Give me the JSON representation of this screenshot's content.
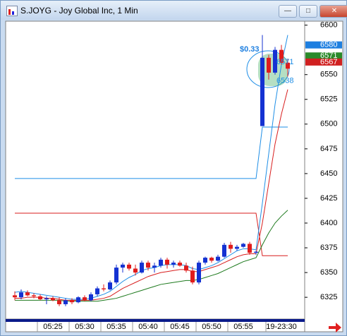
{
  "chart_data": {
    "type": "candlestick",
    "title": "S.JOYG - Joy Global Inc, 1 Min",
    "categories": [
      null,
      null,
      null,
      null,
      null,
      null,
      "05:25",
      null,
      null,
      null,
      null,
      "05:30",
      null,
      null,
      null,
      null,
      "05:35",
      null,
      null,
      null,
      null,
      "05:40",
      null,
      null,
      null,
      null,
      "05:45",
      null,
      null,
      null,
      null,
      "05:50",
      null,
      null,
      null,
      null,
      "05:55",
      null,
      null,
      null,
      null,
      null,
      "19-23:30",
      null
    ],
    "open": [
      6327,
      6325,
      6330,
      6327,
      6326,
      6323,
      6324,
      6322,
      6318,
      6322,
      6320,
      6325,
      6322,
      6328,
      6334,
      6333,
      6340,
      6355,
      6358,
      6354,
      6350,
      6360,
      6355,
      6357,
      6363,
      6358,
      6360,
      6357,
      6352,
      6340,
      6360,
      6365,
      6362,
      6366,
      6378,
      6374,
      6376,
      6379,
      6370,
      6498,
      6567,
      6552,
      6575,
      6562
    ],
    "high": [
      6331,
      6333,
      6332,
      6329,
      6328,
      6326,
      6326,
      6325,
      6324,
      6324,
      6326,
      6327,
      6330,
      6336,
      6338,
      6342,
      6358,
      6360,
      6360,
      6358,
      6362,
      6362,
      6360,
      6365,
      6365,
      6362,
      6362,
      6360,
      6356,
      6362,
      6366,
      6366,
      6368,
      6380,
      6381,
      6378,
      6380,
      6381,
      6372,
      6590,
      6570,
      6578,
      6580,
      6566
    ],
    "low": [
      6322,
      6323,
      6326,
      6324,
      6322,
      6318,
      6321,
      6316,
      6316,
      6318,
      6319,
      6321,
      6321,
      6326,
      6331,
      6332,
      6338,
      6350,
      6352,
      6347,
      6349,
      6352,
      6350,
      6355,
      6354,
      6355,
      6356,
      6350,
      6338,
      6338,
      6358,
      6360,
      6361,
      6365,
      6370,
      6372,
      6375,
      6368,
      6368,
      6498,
      6545,
      6550,
      6560,
      6548
    ],
    "close": [
      6325,
      6330,
      6327,
      6326,
      6323,
      6324,
      6322,
      6318,
      6322,
      6320,
      6325,
      6322,
      6328,
      6334,
      6333,
      6340,
      6355,
      6358,
      6354,
      6350,
      6360,
      6355,
      6357,
      6363,
      6358,
      6360,
      6357,
      6352,
      6340,
      6360,
      6365,
      6362,
      6366,
      6378,
      6374,
      6376,
      6379,
      6370,
      6371,
      6567,
      6552,
      6575,
      6562,
      6556
    ],
    "up_color": "#1432d2",
    "down_color": "#e01c1c",
    "series": [
      {
        "color": "#1e8ee6",
        "values": [
          6445,
          6445,
          6445,
          6445,
          6445,
          6445,
          6445,
          6445,
          6445,
          6445,
          6445,
          6445,
          6445,
          6445,
          6445,
          6445,
          6445,
          6445,
          6445,
          6445,
          6445,
          6445,
          6445,
          6445,
          6445,
          6445,
          6445,
          6445,
          6445,
          6445,
          6445,
          6445,
          6445,
          6445,
          6445,
          6445,
          6445,
          6445,
          6445,
          6497,
          6497,
          6497,
          6497,
          6497
        ]
      },
      {
        "color": "#d81e1e",
        "values": [
          6410,
          6410,
          6410,
          6410,
          6410,
          6410,
          6410,
          6410,
          6410,
          6410,
          6410,
          6410,
          6410,
          6410,
          6410,
          6410,
          6410,
          6410,
          6410,
          6410,
          6410,
          6410,
          6410,
          6410,
          6410,
          6410,
          6410,
          6410,
          6410,
          6410,
          6410,
          6410,
          6410,
          6410,
          6410,
          6410,
          6410,
          6410,
          6410,
          6367,
          6367,
          6367,
          6367,
          6367
        ]
      },
      {
        "color": "#1e8ee6",
        "values": [
          6330,
          6331,
          6330,
          6329,
          6328,
          6327,
          6326,
          6325,
          6324,
          6323,
          6323,
          6323,
          6324,
          6326,
          6328,
          6331,
          6336,
          6341,
          6345,
          6348,
          6352,
          6354,
          6355,
          6357,
          6358,
          6358,
          6358,
          6357,
          6354,
          6353,
          6355,
          6357,
          6360,
          6364,
          6368,
          6372,
          6374,
          6374,
          6373,
          6420,
          6470,
          6520,
          6560,
          6590
        ]
      },
      {
        "color": "#d81e1e",
        "values": [
          6324,
          6324,
          6325,
          6325,
          6325,
          6324,
          6324,
          6323,
          6322,
          6322,
          6322,
          6322,
          6322,
          6323,
          6324,
          6326,
          6330,
          6334,
          6337,
          6340,
          6343,
          6346,
          6348,
          6350,
          6351,
          6352,
          6353,
          6353,
          6351,
          6351,
          6353,
          6355,
          6357,
          6360,
          6363,
          6366,
          6368,
          6369,
          6369,
          6400,
          6440,
          6480,
          6510,
          6535
        ]
      },
      {
        "color": "#1e7a1e",
        "values": [
          6322,
          6322,
          6322,
          6322,
          6322,
          6322,
          6322,
          6322,
          6321,
          6321,
          6321,
          6321,
          6321,
          6321,
          6322,
          6323,
          6324,
          6326,
          6328,
          6330,
          6332,
          6334,
          6336,
          6338,
          6339,
          6340,
          6341,
          6342,
          6342,
          6343,
          6345,
          6347,
          6349,
          6352,
          6355,
          6358,
          6361,
          6363,
          6365,
          6378,
          6390,
          6400,
          6407,
          6413
        ]
      }
    ],
    "ylim": [
      6303,
      6604
    ],
    "yticks": [
      6325,
      6350,
      6375,
      6400,
      6425,
      6450,
      6475,
      6500,
      6525,
      6550,
      6600
    ],
    "price_tags": [
      {
        "value": 6580,
        "color": "#1e7fe0"
      },
      {
        "value": 6571,
        "color": "#2a8a2a"
      },
      {
        "value": 6567,
        "color": "#d02020"
      }
    ],
    "annotations": [
      {
        "text": "$0.33"
      },
      {
        "text": "6571",
        "value": 6571
      },
      {
        "text": "6538",
        "value": 6538
      }
    ]
  }
}
